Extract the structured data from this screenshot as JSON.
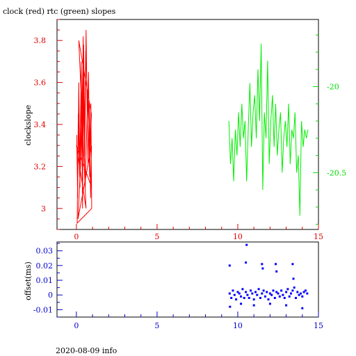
{
  "title": "clock (red) rtc (green) slopes",
  "footer": "2020-08-09 info",
  "chart_data": [
    {
      "type": "line",
      "panel": "top",
      "ylabel": "clockslope",
      "xlim": [
        -1.2,
        15
      ],
      "x_ticks": [
        0,
        5,
        10,
        15
      ],
      "left_axis": {
        "ylim": [
          2.9,
          3.9
        ],
        "ticks": [
          3,
          3.2,
          3.4,
          3.6,
          3.8
        ],
        "tick_labels": [
          "3",
          "3.2",
          "3.4",
          "3.6",
          "3.8"
        ],
        "color": "#dd0000"
      },
      "right_axis": {
        "ylim": [
          -20.83,
          -19.61
        ],
        "ticks": [
          -20,
          -20.5
        ],
        "tick_labels": [
          "-20",
          "-20.5"
        ],
        "color": "#00dd00"
      },
      "series": [
        {
          "axis": "left",
          "color": "#ff0000",
          "x": [
            0.02,
            0.08,
            0.15,
            0.22,
            0.3,
            0.38,
            0.45,
            0.52,
            0.6,
            0.68,
            0.75,
            0.82,
            0.9,
            0.95,
            0.05,
            0.12,
            0.2,
            0.28,
            0.35,
            0.42,
            0.5,
            0.58,
            0.65,
            0.72,
            0.8,
            0.88,
            0.94,
            0.1,
            0.25,
            0.4,
            0.55,
            0.7,
            0.85,
            0.93,
            0.15,
            0.6,
            0.0,
            0.95
          ],
          "y": [
            3.35,
            3.05,
            3.6,
            3.1,
            3.7,
            3.0,
            3.78,
            3.25,
            3.85,
            3.4,
            3.65,
            3.15,
            3.5,
            3.0,
            2.93,
            3.45,
            3.15,
            3.55,
            3.2,
            3.82,
            3.3,
            3.75,
            3.6,
            3.2,
            3.5,
            3.05,
            3.3,
            2.95,
            3.2,
            3.65,
            3.1,
            3.55,
            3.25,
            3.45,
            3.8,
            3.0,
            3.3,
            3.1
          ]
        },
        {
          "axis": "right",
          "color": "#00ee00",
          "x": [
            9.45,
            9.55,
            9.65,
            9.75,
            9.85,
            9.95,
            10.05,
            10.15,
            10.25,
            10.35,
            10.45,
            10.55,
            10.65,
            10.75,
            10.85,
            10.95,
            11.05,
            11.15,
            11.25,
            11.35,
            11.45,
            11.55,
            11.65,
            11.75,
            11.85,
            11.95,
            12.05,
            12.15,
            12.25,
            12.35,
            12.45,
            12.55,
            12.65,
            12.75,
            12.85,
            12.95,
            13.05,
            13.15,
            13.25,
            13.35,
            13.45,
            13.55,
            13.65,
            13.75,
            13.85,
            13.95,
            14.05,
            14.15,
            14.25,
            14.35
          ],
          "y": [
            -20.2,
            -20.45,
            -20.3,
            -20.55,
            -20.25,
            -20.4,
            -20.15,
            -20.35,
            -20.1,
            -20.3,
            -20.2,
            -20.55,
            -20.25,
            -19.98,
            -20.35,
            -20.15,
            -20.05,
            -20.3,
            -19.9,
            -20.2,
            -19.75,
            -20.6,
            -20.15,
            -20.3,
            -19.85,
            -20.45,
            -20.2,
            -20.05,
            -20.35,
            -20.1,
            -20.4,
            -20.25,
            -20.15,
            -20.5,
            -20.3,
            -20.2,
            -20.35,
            -20.1,
            -20.45,
            -20.25,
            -20.3,
            -20.15,
            -20.5,
            -20.4,
            -20.75,
            -20.2,
            -20.35,
            -20.25,
            -20.3,
            -20.25
          ]
        }
      ]
    },
    {
      "type": "scatter",
      "panel": "bottom",
      "ylabel": "offset(ms)",
      "xlim": [
        -1.2,
        15
      ],
      "ylim": [
        -0.015,
        0.036
      ],
      "x_ticks": [
        0,
        5,
        10,
        15
      ],
      "y_ticks": [
        -0.01,
        0,
        0.01,
        0.02,
        0.03
      ],
      "y_tick_labels": [
        "-0.01",
        "0",
        "0.01",
        "0.02",
        "0.03"
      ],
      "color": "#0000ff",
      "x": [
        9.5,
        9.6,
        9.7,
        9.8,
        9.9,
        10.0,
        10.1,
        10.2,
        10.3,
        10.4,
        10.5,
        10.6,
        10.7,
        10.8,
        10.9,
        11.0,
        11.1,
        11.2,
        11.3,
        11.4,
        11.5,
        11.6,
        11.7,
        11.8,
        11.9,
        12.0,
        12.1,
        12.2,
        12.3,
        12.4,
        12.5,
        12.6,
        12.7,
        12.8,
        12.9,
        13.0,
        13.1,
        13.2,
        13.3,
        13.4,
        13.5,
        13.6,
        13.7,
        13.8,
        13.9,
        14.0,
        14.1,
        14.2,
        14.3,
        9.5,
        10.5,
        10.55,
        11.5,
        11.55,
        12.35,
        12.4,
        13.4,
        13.45,
        9.52,
        10.2,
        11.0,
        12.0,
        13.0,
        14.0
      ],
      "y": [
        0.001,
        -0.002,
        0.003,
        0.0,
        -0.003,
        0.002,
        0.001,
        -0.001,
        0.004,
        -0.002,
        0.002,
        0.0,
        -0.002,
        0.003,
        0.001,
        -0.003,
        0.002,
        0.0,
        0.004,
        -0.002,
        0.001,
        0.003,
        -0.001,
        0.002,
        -0.003,
        0.001,
        0.0,
        0.003,
        -0.002,
        0.002,
        0.001,
        -0.001,
        0.003,
        0.0,
        -0.002,
        0.002,
        0.004,
        -0.001,
        0.001,
        0.003,
        0.005,
        -0.002,
        0.002,
        0.0,
        0.001,
        -0.001,
        0.002,
        0.003,
        0.001,
        0.02,
        0.022,
        0.034,
        0.021,
        0.018,
        0.021,
        0.016,
        0.021,
        0.011,
        -0.008,
        -0.006,
        -0.007,
        -0.006,
        -0.007,
        -0.009
      ]
    }
  ]
}
